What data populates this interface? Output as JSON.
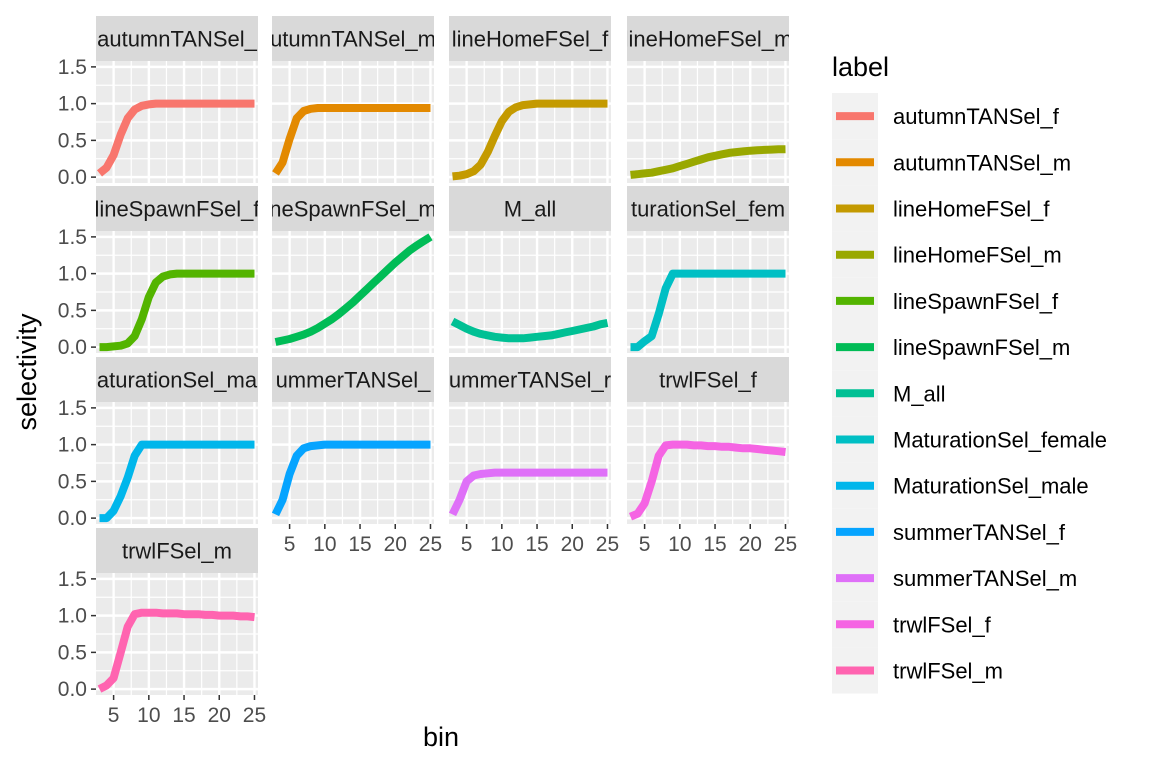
{
  "chart_data": {
    "type": "line",
    "layout": "faceted 4-column grid",
    "xlabel": "bin",
    "ylabel": "selectivity",
    "xlim": [
      2.5,
      25.5
    ],
    "ylim": [
      -0.08,
      1.58
    ],
    "x_ticks": [
      5,
      10,
      15,
      20,
      25
    ],
    "y_ticks": [
      0.0,
      0.5,
      1.0,
      1.5
    ],
    "y_tick_labels": [
      "0.0",
      "0.5",
      "1.0",
      "1.5"
    ],
    "legend_title": "label",
    "legend_position": "right",
    "grid": true,
    "x": [
      3,
      4,
      5,
      6,
      7,
      8,
      9,
      10,
      11,
      12,
      13,
      14,
      15,
      16,
      17,
      18,
      19,
      20,
      21,
      22,
      23,
      24,
      25
    ],
    "series": [
      {
        "name": "autumnTANSel_f",
        "color": "#F8766D",
        "strip_label": "autumnTANSel_",
        "values": [
          0.05,
          0.13,
          0.3,
          0.58,
          0.8,
          0.92,
          0.97,
          0.99,
          1.0,
          1.0,
          1.0,
          1.0,
          1.0,
          1.0,
          1.0,
          1.0,
          1.0,
          1.0,
          1.0,
          1.0,
          1.0,
          1.0,
          1.0
        ]
      },
      {
        "name": "autumnTANSel_m",
        "color": "#E38900",
        "strip_label": "utumnTANSel_m",
        "values": [
          0.05,
          0.2,
          0.52,
          0.8,
          0.9,
          0.93,
          0.94,
          0.94,
          0.94,
          0.94,
          0.94,
          0.94,
          0.94,
          0.94,
          0.94,
          0.94,
          0.94,
          0.94,
          0.94,
          0.94,
          0.94,
          0.94,
          0.94
        ]
      },
      {
        "name": "lineHomeFSel_f",
        "color": "#C49A00",
        "strip_label": "lineHomeFSel_f",
        "values": [
          0.01,
          0.02,
          0.04,
          0.08,
          0.17,
          0.34,
          0.56,
          0.76,
          0.89,
          0.95,
          0.98,
          0.99,
          1.0,
          1.0,
          1.0,
          1.0,
          1.0,
          1.0,
          1.0,
          1.0,
          1.0,
          1.0,
          1.0
        ]
      },
      {
        "name": "lineHomeFSel_m",
        "color": "#99A800",
        "strip_label": "lineHomeFSel_m",
        "values": [
          0.03,
          0.04,
          0.05,
          0.06,
          0.08,
          0.1,
          0.12,
          0.15,
          0.18,
          0.21,
          0.24,
          0.27,
          0.29,
          0.31,
          0.33,
          0.34,
          0.35,
          0.36,
          0.365,
          0.37,
          0.375,
          0.378,
          0.38
        ]
      },
      {
        "name": "lineSpawnFSel_f",
        "color": "#53B400",
        "strip_label": "lineSpawnFSel_f",
        "values": [
          0.0,
          0.0,
          0.01,
          0.02,
          0.05,
          0.15,
          0.38,
          0.68,
          0.88,
          0.96,
          0.99,
          1.0,
          1.0,
          1.0,
          1.0,
          1.0,
          1.0,
          1.0,
          1.0,
          1.0,
          1.0,
          1.0,
          1.0
        ]
      },
      {
        "name": "lineSpawnFSel_m",
        "color": "#00BC56",
        "strip_label": "neSpawnFSel_m",
        "values": [
          0.07,
          0.09,
          0.11,
          0.14,
          0.17,
          0.21,
          0.26,
          0.32,
          0.38,
          0.45,
          0.53,
          0.61,
          0.7,
          0.79,
          0.88,
          0.97,
          1.06,
          1.15,
          1.23,
          1.31,
          1.38,
          1.44,
          1.5
        ]
      },
      {
        "name": "M_all",
        "color": "#00C094",
        "strip_label": "M_all",
        "values": [
          0.35,
          0.3,
          0.25,
          0.21,
          0.18,
          0.16,
          0.14,
          0.13,
          0.12,
          0.12,
          0.12,
          0.13,
          0.14,
          0.15,
          0.16,
          0.18,
          0.2,
          0.22,
          0.24,
          0.26,
          0.28,
          0.31,
          0.33
        ]
      },
      {
        "name": "MaturationSel_female",
        "color": "#00BFC4",
        "strip_label": "turationSel_fem",
        "values": [
          0.0,
          0.0,
          0.08,
          0.15,
          0.45,
          0.8,
          1.0,
          1.0,
          1.0,
          1.0,
          1.0,
          1.0,
          1.0,
          1.0,
          1.0,
          1.0,
          1.0,
          1.0,
          1.0,
          1.0,
          1.0,
          1.0,
          1.0
        ]
      },
      {
        "name": "MaturationSel_male",
        "color": "#00B6EB",
        "strip_label": "aturationSel_ma",
        "values": [
          0.0,
          0.0,
          0.1,
          0.3,
          0.55,
          0.85,
          1.0,
          1.0,
          1.0,
          1.0,
          1.0,
          1.0,
          1.0,
          1.0,
          1.0,
          1.0,
          1.0,
          1.0,
          1.0,
          1.0,
          1.0,
          1.0,
          1.0
        ]
      },
      {
        "name": "summerTANSel_f",
        "color": "#06A4FF",
        "strip_label": "ummerTANSel_",
        "values": [
          0.05,
          0.25,
          0.6,
          0.85,
          0.95,
          0.98,
          0.99,
          1.0,
          1.0,
          1.0,
          1.0,
          1.0,
          1.0,
          1.0,
          1.0,
          1.0,
          1.0,
          1.0,
          1.0,
          1.0,
          1.0,
          1.0,
          1.0
        ]
      },
      {
        "name": "summerTANSel_m",
        "color": "#DF70F8",
        "strip_label": "ummerTANSel_r",
        "values": [
          0.05,
          0.25,
          0.5,
          0.58,
          0.6,
          0.61,
          0.62,
          0.62,
          0.62,
          0.62,
          0.62,
          0.62,
          0.62,
          0.62,
          0.62,
          0.62,
          0.62,
          0.62,
          0.62,
          0.62,
          0.62,
          0.62,
          0.62
        ]
      },
      {
        "name": "trwlFSel_f",
        "color": "#F564E3",
        "strip_label": "trwlFSel_f",
        "values": [
          0.02,
          0.06,
          0.2,
          0.5,
          0.85,
          0.99,
          1.0,
          1.0,
          1.0,
          0.99,
          0.99,
          0.98,
          0.98,
          0.97,
          0.97,
          0.96,
          0.95,
          0.95,
          0.94,
          0.93,
          0.92,
          0.91,
          0.9
        ]
      },
      {
        "name": "trwlFSel_m",
        "color": "#FF64B0",
        "strip_label": "trwlFSel_m",
        "values": [
          0.0,
          0.05,
          0.15,
          0.5,
          0.85,
          1.02,
          1.04,
          1.04,
          1.04,
          1.03,
          1.03,
          1.03,
          1.02,
          1.02,
          1.02,
          1.01,
          1.01,
          1.0,
          1.0,
          1.0,
          0.99,
          0.99,
          0.98
        ]
      }
    ]
  }
}
